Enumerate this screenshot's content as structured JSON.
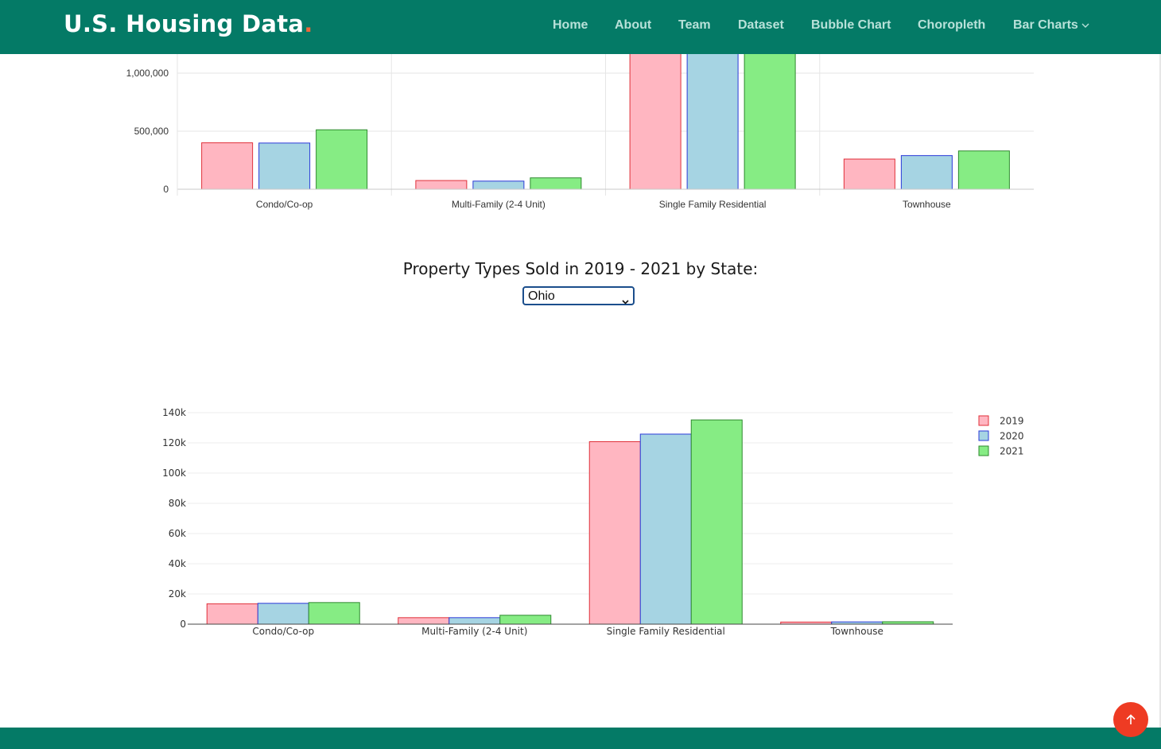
{
  "header": {
    "brand": "U.S. Housing Data",
    "brand_dot": ".",
    "nav": [
      {
        "label": "Home"
      },
      {
        "label": "About"
      },
      {
        "label": "Team"
      },
      {
        "label": "Dataset"
      },
      {
        "label": "Bubble Chart"
      },
      {
        "label": "Choropleth"
      },
      {
        "label": "Bar Charts"
      }
    ]
  },
  "section": {
    "title": "Property Types Sold in 2019 - 2021 by State:",
    "state_select": {
      "selected": "Ohio"
    }
  },
  "colors": {
    "brand": "#047a66",
    "accent_dot": "#f0673a",
    "scroll_top_button": "#ee3b23",
    "series_fill": [
      "#ffb6c1",
      "#a6d4e3",
      "#86ec84"
    ],
    "series_stroke": [
      "#e0303a",
      "#2b3ad8",
      "#2f8a2f"
    ]
  },
  "icons": {
    "scroll_top": "arrow-up-icon",
    "dropdown": "chevron-down-icon"
  },
  "chart_data": [
    {
      "type": "bar",
      "categories": [
        "Condo/Co-op",
        "Multi-Family (2-4 Unit)",
        "Single Family Residential",
        "Townhouse"
      ],
      "series": [
        {
          "values": [
            400000,
            75000,
            1200000,
            260000
          ]
        },
        {
          "values": [
            398000,
            70000,
            1200000,
            290000
          ]
        },
        {
          "values": [
            512000,
            98000,
            1200000,
            330000
          ]
        }
      ],
      "y_ticks": [
        "0",
        "500,000",
        "1,000,000"
      ],
      "ylim": [
        0,
        1000000
      ],
      "note_visible": "bars of Single Family Residential extend beyond the visible top of the chart",
      "grid": true
    },
    {
      "type": "bar",
      "categories": [
        "Condo/Co-op",
        "Multi-Family (2-4 Unit)",
        "Single Family Residential",
        "Townhouse"
      ],
      "series": [
        {
          "name": "2019",
          "values": [
            13500,
            4300,
            120800,
            1400
          ]
        },
        {
          "name": "2020",
          "values": [
            13800,
            4300,
            125800,
            1500
          ]
        },
        {
          "name": "2021",
          "values": [
            14300,
            5900,
            135200,
            1600
          ]
        }
      ],
      "y_ticks": [
        "0",
        "20k",
        "40k",
        "60k",
        "80k",
        "100k",
        "120k",
        "140k"
      ],
      "ylim": [
        0,
        140000
      ],
      "legend": "top-right",
      "grid": true
    }
  ]
}
